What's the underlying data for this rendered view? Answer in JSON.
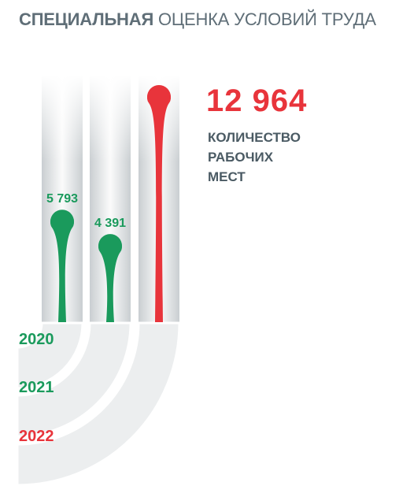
{
  "title": {
    "bold": "СПЕЦИАЛЬНАЯ",
    "rest": "ОЦЕНКА УСЛОВИЙ ТРУДА"
  },
  "headline": {
    "value": "12 964",
    "label": "КОЛИЧЕСТВО\nРАБОЧИХ\nМЕСТ"
  },
  "colors": {
    "green": "#1a9a5c",
    "red": "#e8343b",
    "gray_text": "#5f6e77"
  },
  "chart_data": {
    "type": "bar",
    "categories": [
      "2020",
      "2021",
      "2022"
    ],
    "values": [
      5793,
      4391,
      12964
    ],
    "data_labels": [
      "5 793",
      "4 391",
      ""
    ],
    "category_colors": [
      "#1a9a5c",
      "#1a9a5c",
      "#e8343b"
    ],
    "ylim": [
      0,
      13000
    ],
    "grid": false,
    "title": "",
    "xlabel": "",
    "ylabel": ""
  }
}
